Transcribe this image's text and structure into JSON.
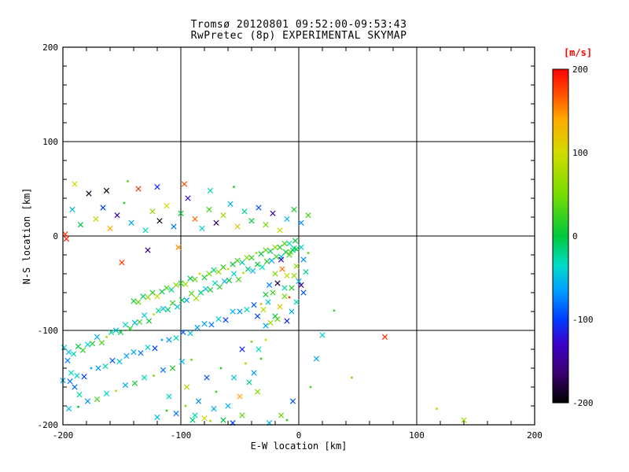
{
  "title": {
    "line1": "Tromsø 20120801 09:52:00-09:53:43",
    "line2": "RwPretec (8p) EXPERIMENTAL SKYMAP"
  },
  "axes": {
    "xlabel": "E-W location [km]",
    "ylabel": "N-S location [km]",
    "xlim": [
      -200,
      200
    ],
    "ylim": [
      -200,
      200
    ],
    "x_ticks": [
      -200,
      -100,
      0,
      100,
      200
    ],
    "y_ticks": [
      -200,
      -100,
      0,
      100,
      200
    ],
    "minor_tick_step": 20,
    "grid": true
  },
  "colors": {
    "background": "#ffffff",
    "axis": "#000000",
    "colorbar_title": "#ff0000"
  },
  "colorbar": {
    "title": "[m/s]",
    "ticks": [
      200,
      100,
      0,
      -100,
      -200
    ],
    "min": -200,
    "max": 200
  },
  "chart_data": {
    "type": "scatter",
    "title": "Tromsø 20120801 09:52:00-09:53:43 | RwPretec (8p) EXPERIMENTAL SKYMAP",
    "xlabel": "E-W location [km]",
    "ylabel": "N-S location [km]",
    "xlim": [
      -200,
      200
    ],
    "ylim": [
      -200,
      200
    ],
    "grid": true,
    "marker": "x",
    "color_value": "velocity [m/s]",
    "color_range": [
      -200,
      200
    ],
    "colormap_stops": [
      [
        -200,
        "#000000"
      ],
      [
        -165,
        "#3c006e"
      ],
      [
        -130,
        "#3c00c8"
      ],
      [
        -100,
        "#003cff"
      ],
      [
        -65,
        "#00a0ff"
      ],
      [
        -35,
        "#00dcc8"
      ],
      [
        0,
        "#00c83c"
      ],
      [
        50,
        "#78dc00"
      ],
      [
        100,
        "#d2dc00"
      ],
      [
        140,
        "#ffaa00"
      ],
      [
        170,
        "#ff5000"
      ],
      [
        200,
        "#ff0000"
      ]
    ],
    "point_format": "[ew_km, ns_km, velocity_ms, is_dot]",
    "points": [
      [
        -195,
        -123,
        -50
      ],
      [
        -191,
        -125,
        -30
      ],
      [
        -187,
        -117,
        0
      ],
      [
        -183,
        -121,
        20
      ],
      [
        -179,
        -115,
        -40
      ],
      [
        -175,
        -114,
        10
      ],
      [
        -171,
        -107,
        -60
      ],
      [
        -167,
        -113,
        30
      ],
      [
        -163,
        -107,
        80,
        1
      ],
      [
        -159,
        -102,
        -20
      ],
      [
        -155,
        -100,
        -50
      ],
      [
        -151,
        -102,
        0
      ],
      [
        -147,
        -94,
        -35
      ],
      [
        -143,
        -98,
        15
      ],
      [
        -139,
        -92,
        -55
      ],
      [
        -135,
        -91,
        25
      ],
      [
        -131,
        -84,
        -45
      ],
      [
        -127,
        -90,
        5
      ],
      [
        -123,
        -83,
        90,
        1
      ],
      [
        -119,
        -79,
        -25
      ],
      [
        -115,
        -77,
        -50
      ],
      [
        -111,
        -78,
        -10
      ],
      [
        -107,
        -71,
        20
      ],
      [
        -103,
        -75,
        -40
      ],
      [
        -99,
        -68,
        0
      ],
      [
        -95,
        -68,
        -60
      ],
      [
        -91,
        -61,
        35
      ],
      [
        -87,
        -66,
        70
      ],
      [
        -83,
        -60,
        -20
      ],
      [
        -79,
        -56,
        -45
      ],
      [
        -75,
        -57,
        10
      ],
      [
        -71,
        -50,
        -30
      ],
      [
        -67,
        -54,
        20
      ],
      [
        -63,
        -48,
        -55
      ],
      [
        -59,
        -47,
        0
      ],
      [
        -55,
        -40,
        -40
      ],
      [
        -51,
        -46,
        30
      ],
      [
        -47,
        -39,
        85,
        1
      ],
      [
        -43,
        -35,
        -15
      ],
      [
        -39,
        -37,
        -50
      ],
      [
        -35,
        -30,
        5
      ],
      [
        -31,
        -33,
        -35
      ],
      [
        -27,
        -27,
        15
      ],
      [
        -23,
        -26,
        -60
      ],
      [
        -19,
        -22,
        25
      ],
      [
        -15,
        -22,
        -45
      ],
      [
        -11,
        -17,
        0
      ],
      [
        -7,
        -17,
        40
      ],
      [
        -4,
        -13,
        -25
      ],
      [
        -2,
        -14,
        10
      ],
      [
        -140,
        -69,
        10
      ],
      [
        -136,
        -70,
        40
      ],
      [
        -132,
        -64,
        -10
      ],
      [
        -128,
        -65,
        60
      ],
      [
        -124,
        -60,
        20
      ],
      [
        -120,
        -64,
        90
      ],
      [
        -116,
        -59,
        0
      ],
      [
        -112,
        -55,
        30
      ],
      [
        -108,
        -57,
        -20
      ],
      [
        -104,
        -52,
        50
      ],
      [
        -100,
        -50,
        15
      ],
      [
        -96,
        -51,
        70
      ],
      [
        -92,
        -45,
        -5
      ],
      [
        -88,
        -46,
        35
      ],
      [
        -84,
        -40,
        110,
        1
      ],
      [
        -80,
        -44,
        10
      ],
      [
        -76,
        -40,
        45
      ],
      [
        -72,
        -36,
        -15
      ],
      [
        -68,
        -38,
        65
      ],
      [
        -64,
        -33,
        25
      ],
      [
        -60,
        -35,
        95,
        1
      ],
      [
        -56,
        -30,
        5
      ],
      [
        -52,
        -26,
        30
      ],
      [
        -48,
        -28,
        -25
      ],
      [
        -44,
        -23,
        55
      ],
      [
        -40,
        -23,
        20
      ],
      [
        -36,
        -18,
        75,
        1
      ],
      [
        -32,
        -19,
        0
      ],
      [
        -28,
        -15,
        40
      ],
      [
        -24,
        -16,
        -10
      ],
      [
        -20,
        -12,
        60
      ],
      [
        -16,
        -12,
        15
      ],
      [
        -12,
        -8,
        35
      ],
      [
        -8,
        -8,
        -30
      ],
      [
        -200,
        -153,
        -60
      ],
      [
        -194,
        -154,
        -80
      ],
      [
        -188,
        -148,
        -40
      ],
      [
        -182,
        -149,
        -100
      ],
      [
        -176,
        -140,
        -55,
        1
      ],
      [
        -170,
        -140,
        -70
      ],
      [
        -164,
        -138,
        -30
      ],
      [
        -158,
        -132,
        -90
      ],
      [
        -152,
        -133,
        -50
      ],
      [
        -146,
        -127,
        -65
      ],
      [
        -140,
        -123,
        -60
      ],
      [
        -134,
        -124,
        -80
      ],
      [
        -128,
        -118,
        -40
      ],
      [
        -122,
        -119,
        -100
      ],
      [
        -116,
        -110,
        -55,
        1
      ],
      [
        -110,
        -110,
        -70
      ],
      [
        -104,
        -108,
        -30
      ],
      [
        -98,
        -102,
        -90
      ],
      [
        -92,
        -103,
        -50
      ],
      [
        -86,
        -97,
        -65
      ],
      [
        -80,
        -93,
        -60
      ],
      [
        -74,
        -94,
        -80
      ],
      [
        -68,
        -88,
        -40
      ],
      [
        -62,
        -89,
        -100
      ],
      [
        -56,
        -80,
        -55
      ],
      [
        -50,
        -80,
        -70
      ],
      [
        -44,
        -78,
        -30
      ],
      [
        -38,
        -73,
        -90
      ],
      [
        -195,
        -183,
        -50
      ],
      [
        -187,
        -181,
        0,
        1
      ],
      [
        -179,
        -175,
        -70
      ],
      [
        -171,
        -173,
        30
      ],
      [
        -163,
        -167,
        -40
      ],
      [
        -155,
        -164,
        80,
        1
      ],
      [
        -147,
        -158,
        -60
      ],
      [
        -139,
        -156,
        10
      ],
      [
        -131,
        -150,
        -30
      ],
      [
        -123,
        -148,
        50,
        1
      ],
      [
        -115,
        -142,
        -80
      ],
      [
        -107,
        -140,
        20
      ],
      [
        -99,
        -133,
        -55
      ],
      [
        -91,
        -131,
        40,
        1
      ],
      [
        -199,
        -118,
        -45
      ],
      [
        -196,
        -132,
        -75
      ],
      [
        -193,
        -145,
        -35
      ],
      [
        -190,
        -160,
        -85
      ],
      [
        -186,
        -168,
        -25
      ],
      [
        -198,
        2,
        180
      ],
      [
        -192,
        28,
        -50
      ],
      [
        -185,
        12,
        0
      ],
      [
        -178,
        45,
        -190
      ],
      [
        -172,
        18,
        90
      ],
      [
        -166,
        30,
        -100
      ],
      [
        -160,
        8,
        140
      ],
      [
        -154,
        22,
        -150
      ],
      [
        -148,
        35,
        20,
        1
      ],
      [
        -142,
        14,
        -60
      ],
      [
        -136,
        50,
        180
      ],
      [
        -130,
        6,
        -30
      ],
      [
        -124,
        26,
        60
      ],
      [
        -118,
        16,
        -190
      ],
      [
        -112,
        32,
        100
      ],
      [
        -106,
        10,
        -80
      ],
      [
        -100,
        24,
        0
      ],
      [
        -94,
        40,
        -120
      ],
      [
        -88,
        18,
        160
      ],
      [
        -82,
        8,
        -40
      ],
      [
        -76,
        28,
        30
      ],
      [
        -70,
        14,
        -170
      ],
      [
        -64,
        22,
        70
      ],
      [
        -58,
        34,
        -60
      ],
      [
        -52,
        10,
        120
      ],
      [
        -46,
        26,
        -20
      ],
      [
        -40,
        16,
        0
      ],
      [
        -34,
        30,
        -90
      ],
      [
        -28,
        12,
        50
      ],
      [
        -22,
        24,
        -140
      ],
      [
        -16,
        6,
        90
      ],
      [
        -10,
        18,
        -50
      ],
      [
        -4,
        28,
        10
      ],
      [
        2,
        14,
        -70
      ],
      [
        8,
        22,
        30
      ],
      [
        -190,
        55,
        100
      ],
      [
        -163,
        48,
        -200
      ],
      [
        -145,
        58,
        40,
        1
      ],
      [
        -120,
        52,
        -110
      ],
      [
        -97,
        55,
        170
      ],
      [
        -75,
        48,
        -30
      ],
      [
        -55,
        52,
        20,
        1
      ],
      [
        -197,
        -3,
        190
      ],
      [
        -150,
        -28,
        180
      ],
      [
        -128,
        -15,
        -160
      ],
      [
        -102,
        -12,
        150
      ],
      [
        -3,
        -5,
        0
      ],
      [
        2,
        -12,
        -40
      ],
      [
        -8,
        -20,
        30
      ],
      [
        4,
        -25,
        -70
      ],
      [
        -2,
        -32,
        60
      ],
      [
        6,
        -38,
        -20
      ],
      [
        -10,
        -42,
        90
      ],
      [
        0,
        -48,
        -55
      ],
      [
        -6,
        -55,
        15
      ],
      [
        4,
        -60,
        -90
      ],
      [
        -12,
        -64,
        45
      ],
      [
        -2,
        -70,
        -30
      ],
      [
        -16,
        -75,
        120
      ],
      [
        -6,
        -80,
        -60
      ],
      [
        -20,
        -85,
        0
      ],
      [
        -10,
        -90,
        -110
      ],
      [
        -24,
        -92,
        70
      ],
      [
        -14,
        -35,
        160
      ],
      [
        -18,
        -50,
        -180
      ],
      [
        -22,
        -60,
        25
      ],
      [
        -26,
        -70,
        -45
      ],
      [
        -30,
        -78,
        85
      ],
      [
        -5,
        -15,
        -10
      ],
      [
        8,
        -18,
        40,
        1
      ],
      [
        -15,
        -25,
        -130
      ],
      [
        -20,
        -40,
        55
      ],
      [
        -25,
        -52,
        -75
      ],
      [
        -28,
        -62,
        10
      ],
      [
        -32,
        -72,
        130,
        1
      ],
      [
        -35,
        -85,
        -95
      ],
      [
        -8,
        -65,
        175,
        1
      ],
      [
        -12,
        -55,
        -25
      ],
      [
        -4,
        -42,
        65
      ],
      [
        2,
        -52,
        -150
      ],
      [
        -18,
        -88,
        35
      ],
      [
        -28,
        -95,
        -65
      ],
      [
        -120,
        -192,
        -50
      ],
      [
        -112,
        -185,
        20,
        1
      ],
      [
        -104,
        -188,
        -80
      ],
      [
        -96,
        -180,
        60,
        1
      ],
      [
        -88,
        -190,
        -30
      ],
      [
        -80,
        -193,
        100
      ],
      [
        -72,
        -183,
        -60
      ],
      [
        -64,
        -195,
        0
      ],
      [
        -56,
        -198,
        -100
      ],
      [
        -48,
        -190,
        40
      ],
      [
        -110,
        -170,
        -40
      ],
      [
        -95,
        -160,
        80
      ],
      [
        -85,
        -175,
        -70
      ],
      [
        -70,
        -165,
        25,
        1
      ],
      [
        -60,
        -180,
        -55
      ],
      [
        -50,
        -170,
        140
      ],
      [
        -42,
        -155,
        -20
      ],
      [
        -35,
        -165,
        55
      ],
      [
        -78,
        -150,
        -90
      ],
      [
        -66,
        -140,
        15,
        1
      ],
      [
        -55,
        -150,
        -45
      ],
      [
        -45,
        -135,
        75,
        1
      ],
      [
        -38,
        -145,
        -65
      ],
      [
        -32,
        -130,
        30,
        1
      ],
      [
        -48,
        -120,
        -110
      ],
      [
        -40,
        -112,
        50,
        1
      ],
      [
        -34,
        -120,
        -35
      ],
      [
        -28,
        -110,
        90,
        1
      ],
      [
        -90,
        -195,
        -15
      ],
      [
        -75,
        -196,
        65,
        1
      ],
      [
        73,
        -107,
        185
      ],
      [
        117,
        -183,
        90,
        1
      ],
      [
        30,
        -79,
        20,
        1
      ],
      [
        20,
        -105,
        -40
      ],
      [
        45,
        -150,
        60,
        1
      ],
      [
        140,
        -195,
        70
      ],
      [
        15,
        -130,
        -60
      ],
      [
        10,
        -160,
        30,
        1
      ],
      [
        -5,
        -175,
        -90
      ],
      [
        -15,
        -190,
        45
      ],
      [
        -25,
        -198,
        -55
      ],
      [
        -10,
        -195,
        15,
        1
      ]
    ]
  }
}
